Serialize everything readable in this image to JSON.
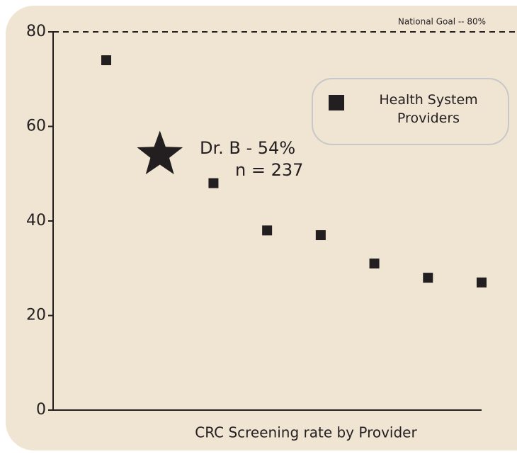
{
  "chart_data": {
    "type": "scatter",
    "xlabel": "CRC Screening rate by Provider",
    "categories": [
      null,
      null,
      null,
      null,
      null,
      null,
      null,
      null
    ],
    "series": [
      {
        "name": "Health System Providers",
        "color": "#231f20",
        "marker": "square",
        "values": [
          74,
          null,
          48,
          38,
          37,
          31,
          28,
          27
        ]
      },
      {
        "color": "#231f20",
        "marker": "star",
        "values": [
          null,
          54,
          null,
          null,
          null,
          null,
          null,
          null
        ]
      }
    ],
    "annotations": [
      "Dr. B - 54%",
      "n = 237"
    ],
    "reference_line": {
      "value": 80,
      "label": "National Goal -- 80%"
    },
    "ylim": [
      0,
      80
    ],
    "yticks": [
      0,
      20,
      40,
      60,
      80
    ],
    "legend": "upper right"
  }
}
